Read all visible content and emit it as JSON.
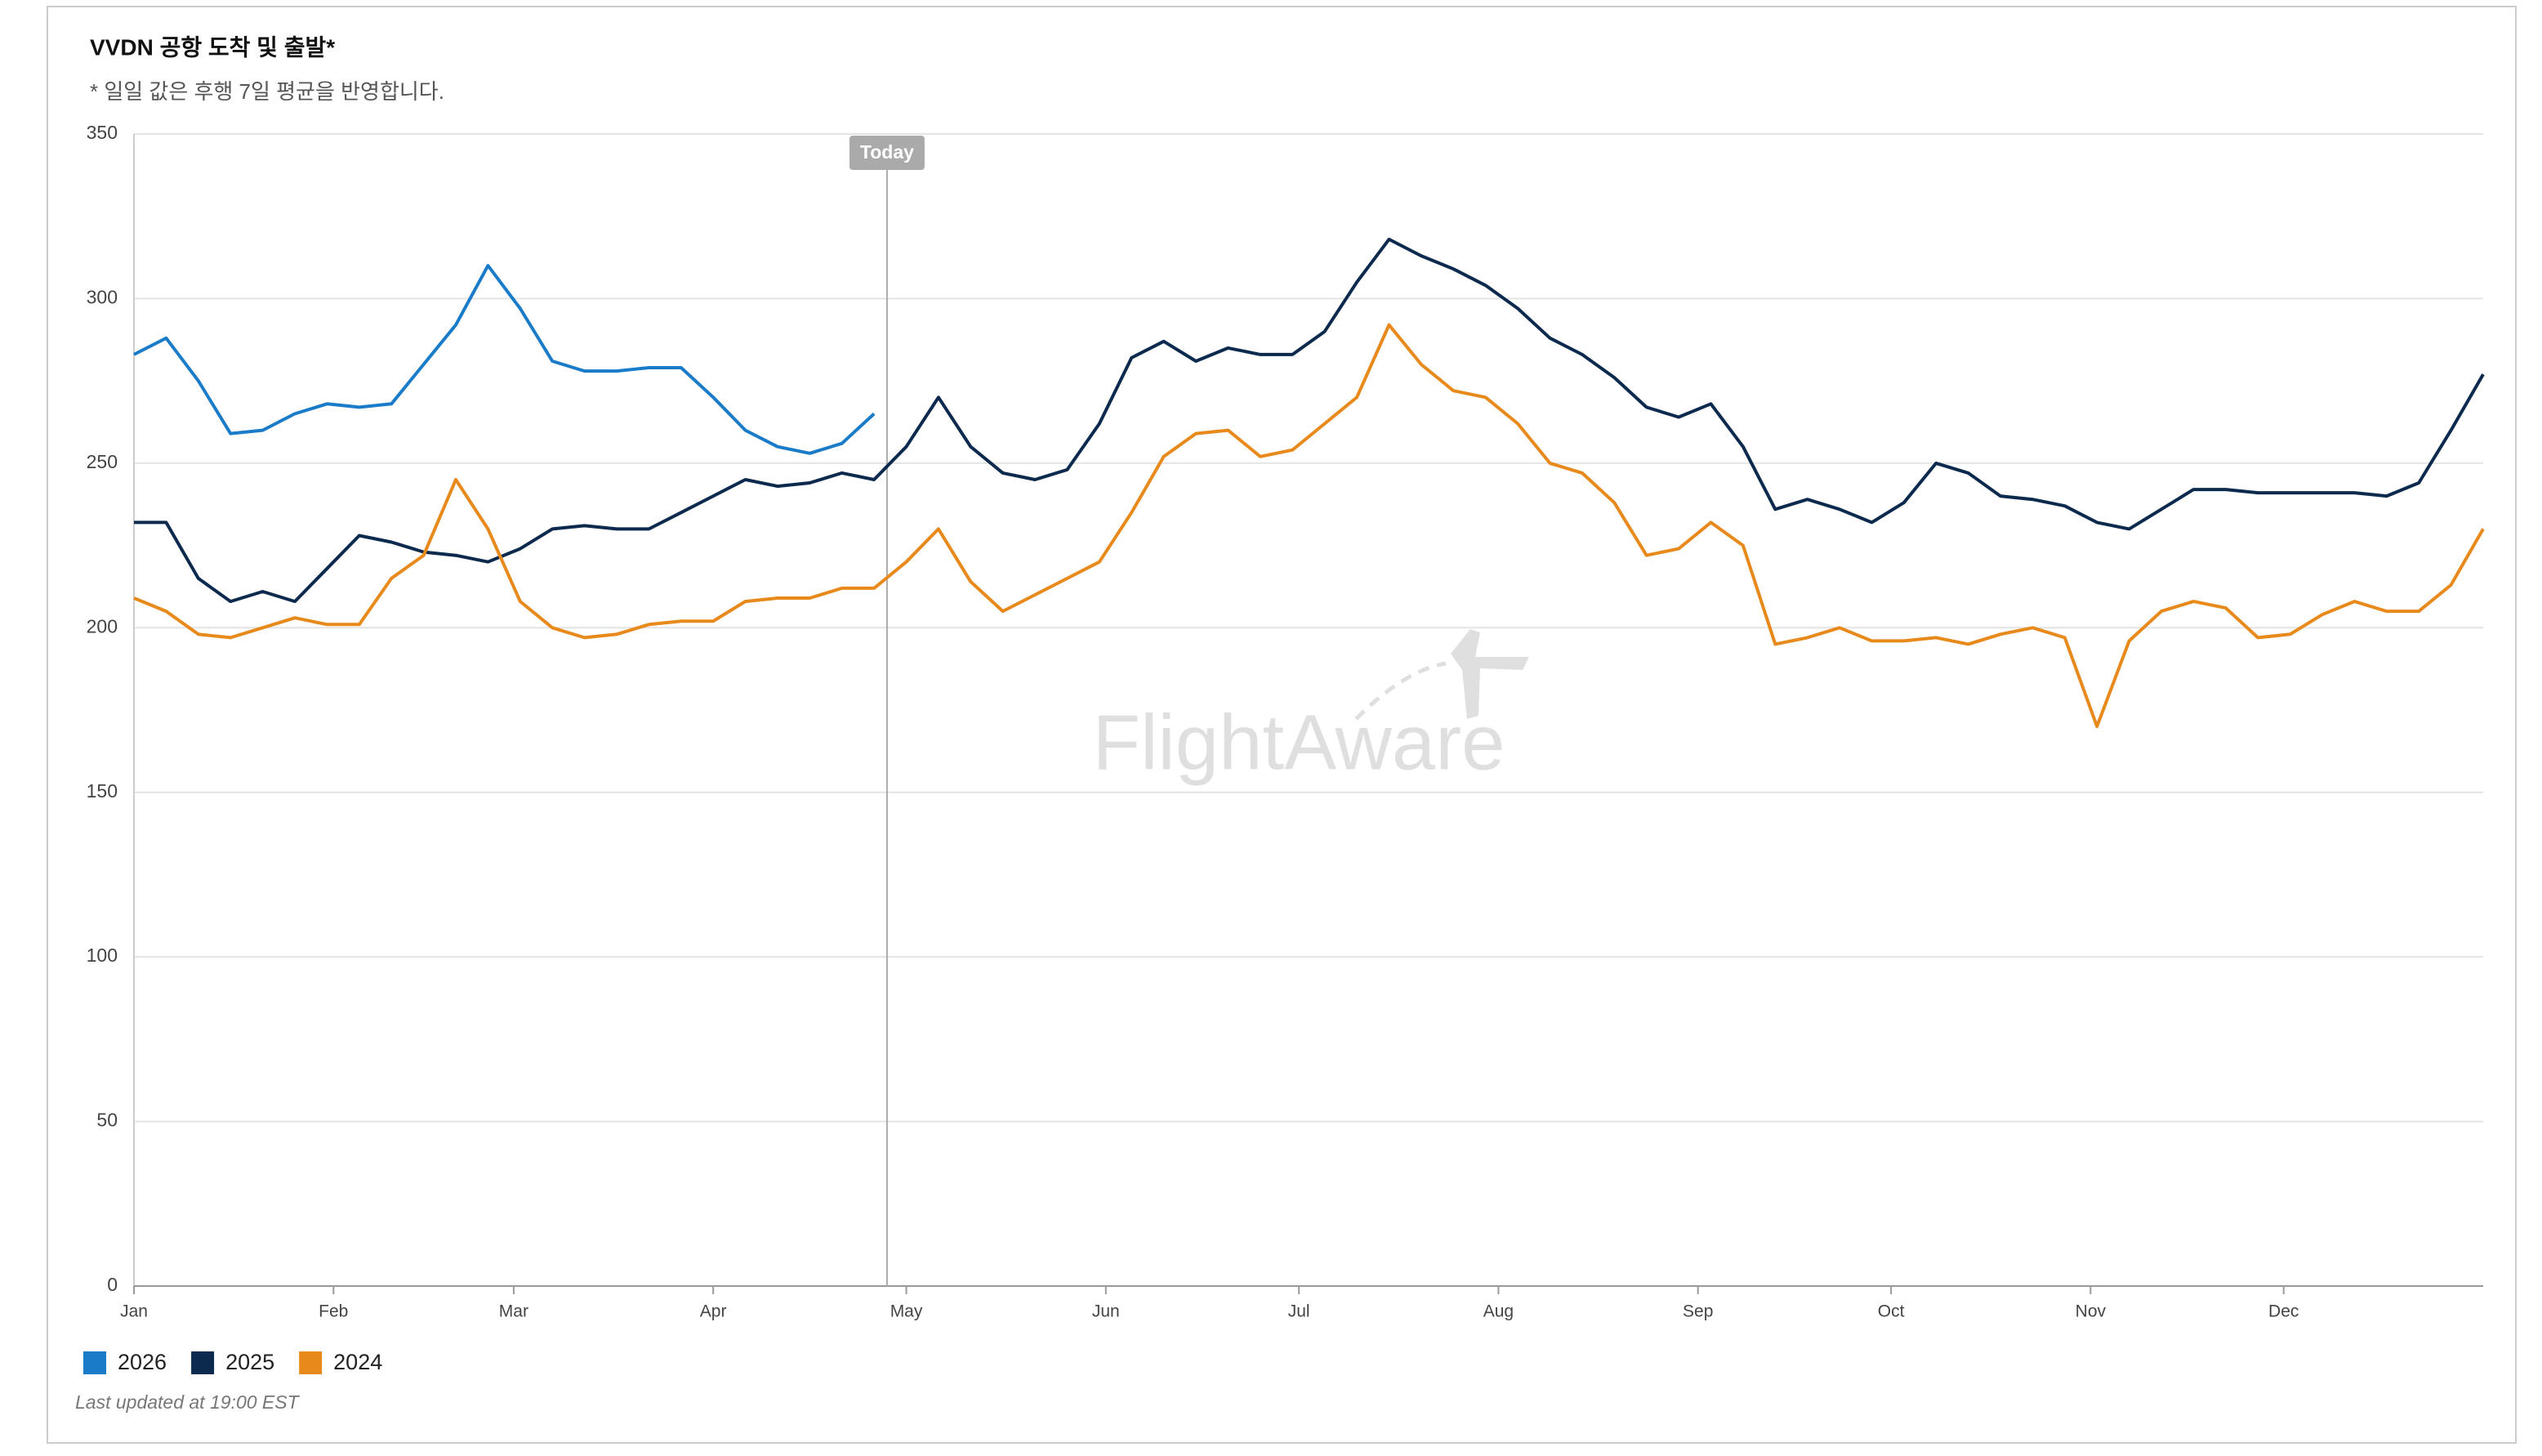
{
  "chart_data": {
    "type": "line",
    "title": "VVDN 공항 도착 및 출발*",
    "subtitle": "* 일일 값은 후행 7일 평균을 반영합니다.",
    "footnote": "Last updated at 19:00 EST",
    "watermark": "FlightAware",
    "annotation": {
      "x": 117,
      "label": "Today"
    },
    "x": [
      0,
      5,
      10,
      15,
      20,
      25,
      30,
      35,
      40,
      45,
      50,
      55,
      60,
      65,
      70,
      75,
      80,
      85,
      90,
      95,
      100,
      105,
      110,
      115,
      120,
      125,
      130,
      135,
      140,
      145,
      150,
      155,
      160,
      165,
      170,
      175,
      180,
      185,
      190,
      195,
      200,
      205,
      210,
      215,
      220,
      225,
      230,
      235,
      240,
      245,
      250,
      255,
      260,
      265,
      270,
      275,
      280,
      285,
      290,
      295,
      300,
      305,
      310,
      315,
      320,
      325,
      330,
      335,
      340,
      345,
      350,
      355,
      360,
      365
    ],
    "xlim": [
      0,
      365
    ],
    "xticks": [
      {
        "value": 0,
        "label": "Jan"
      },
      {
        "value": 31,
        "label": "Feb"
      },
      {
        "value": 59,
        "label": "Mar"
      },
      {
        "value": 90,
        "label": "Apr"
      },
      {
        "value": 120,
        "label": "May"
      },
      {
        "value": 151,
        "label": "Jun"
      },
      {
        "value": 181,
        "label": "Jul"
      },
      {
        "value": 212,
        "label": "Aug"
      },
      {
        "value": 243,
        "label": "Sep"
      },
      {
        "value": 273,
        "label": "Oct"
      },
      {
        "value": 304,
        "label": "Nov"
      },
      {
        "value": 334,
        "label": "Dec"
      }
    ],
    "ylim": [
      0,
      350
    ],
    "yticks": [
      0,
      50,
      100,
      150,
      200,
      250,
      300,
      350
    ],
    "grid": true,
    "series": [
      {
        "name": "2026",
        "color": "#1a7cc9",
        "values": [
          283,
          288,
          275,
          259,
          260,
          265,
          268,
          267,
          268,
          280,
          292,
          310,
          297,
          281,
          278,
          278,
          279,
          279,
          270,
          260,
          255,
          253,
          256,
          265,
          null,
          null,
          null,
          null,
          null,
          null,
          null,
          null,
          null,
          null,
          null,
          null,
          null,
          null,
          null,
          null,
          null,
          null,
          null,
          null,
          null,
          null,
          null,
          null,
          null,
          null,
          null,
          null,
          null,
          null,
          null,
          null,
          null,
          null,
          null,
          null,
          null,
          null,
          null,
          null,
          null,
          null,
          null,
          null,
          null,
          null,
          null,
          null,
          null,
          null
        ]
      },
      {
        "name": "2025",
        "color": "#0b2a4e",
        "values": [
          232,
          232,
          215,
          208,
          211,
          208,
          218,
          228,
          226,
          223,
          222,
          220,
          224,
          230,
          231,
          230,
          230,
          235,
          240,
          245,
          243,
          244,
          247,
          245,
          255,
          270,
          255,
          247,
          245,
          248,
          262,
          282,
          287,
          281,
          285,
          283,
          283,
          290,
          305,
          318,
          313,
          309,
          304,
          297,
          288,
          283,
          276,
          267,
          264,
          268,
          255,
          236,
          239,
          236,
          232,
          238,
          250,
          247,
          240,
          239,
          237,
          232,
          230,
          236,
          242,
          242,
          241,
          241,
          241,
          241,
          240,
          244,
          260,
          277
        ]
      },
      {
        "name": "2024",
        "color": "#e8891c",
        "values": [
          209,
          205,
          198,
          197,
          200,
          203,
          201,
          201,
          215,
          222,
          245,
          230,
          208,
          200,
          197,
          198,
          201,
          202,
          202,
          208,
          209,
          209,
          212,
          212,
          220,
          230,
          214,
          205,
          210,
          215,
          220,
          235,
          252,
          259,
          260,
          252,
          254,
          262,
          270,
          292,
          280,
          272,
          270,
          262,
          250,
          247,
          238,
          222,
          224,
          232,
          225,
          195,
          197,
          200,
          196,
          196,
          197,
          195,
          198,
          200,
          197,
          170,
          196,
          205,
          208,
          206,
          197,
          198,
          204,
          208,
          205,
          205,
          213,
          230
        ]
      }
    ]
  }
}
